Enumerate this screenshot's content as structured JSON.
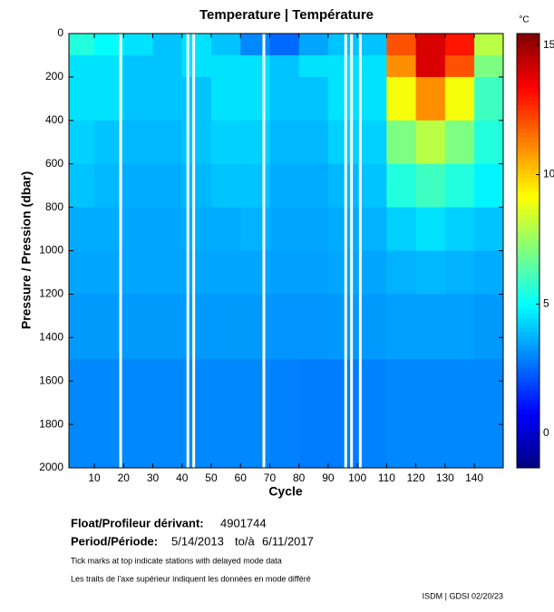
{
  "chart_data": {
    "type": "heatmap",
    "title": "Temperature | Température",
    "x_label": "Cycle",
    "y_label": "Pressure / Pression (dbar)",
    "xlim": [
      1.3,
      149.9
    ],
    "ylim": [
      2000,
      0
    ],
    "xticks": [
      10,
      20,
      30,
      40,
      50,
      60,
      70,
      80,
      90,
      100,
      110,
      120,
      130,
      140
    ],
    "yticks": [
      0,
      200,
      400,
      600,
      800,
      1000,
      1200,
      1400,
      1600,
      1800,
      2000
    ],
    "x_edges": [
      0,
      10,
      20,
      30,
      40,
      50,
      60,
      70,
      80,
      90,
      100,
      110,
      120,
      130,
      140,
      150
    ],
    "y_edges": [
      0,
      100,
      200,
      400,
      600,
      800,
      1000,
      1200,
      1500,
      2000
    ],
    "values": [
      [
        5.5,
        5,
        4.5,
        4,
        4.5,
        4,
        3,
        2.5,
        3.5,
        4,
        4,
        12,
        14,
        13,
        8
      ],
      [
        4.5,
        4.5,
        4,
        4,
        4.5,
        4.5,
        4.5,
        4,
        4.5,
        4.5,
        4.5,
        11,
        14,
        12,
        7
      ],
      [
        4.5,
        4.5,
        4,
        4,
        4,
        4.5,
        4.5,
        4,
        4,
        4.5,
        4.5,
        9,
        11,
        9,
        6
      ],
      [
        4.2,
        4,
        3.8,
        3.8,
        4,
        4.2,
        4.2,
        3.8,
        3.8,
        4.2,
        4.2,
        7,
        8,
        7,
        5.5
      ],
      [
        4,
        3.8,
        3.6,
        3.6,
        3.8,
        4,
        4,
        3.6,
        3.6,
        3.8,
        4,
        5.5,
        6,
        5.5,
        4.8
      ],
      [
        3.6,
        3.6,
        3.5,
        3.5,
        3.6,
        3.6,
        3.7,
        3.5,
        3.5,
        3.6,
        3.7,
        4.2,
        4.5,
        4.2,
        4
      ],
      [
        3.5,
        3.5,
        3.5,
        3.5,
        3.5,
        3.5,
        3.5,
        3.4,
        3.4,
        3.5,
        3.5,
        3.7,
        3.8,
        3.7,
        3.6
      ],
      [
        3.3,
        3.3,
        3.3,
        3.3,
        3.3,
        3.3,
        3.3,
        3.2,
        3.2,
        3.3,
        3.3,
        3.4,
        3.4,
        3.4,
        3.3
      ],
      [
        3,
        3,
        3,
        3,
        3,
        3,
        3,
        2.9,
        2.8,
        2.8,
        2.9,
        3,
        3,
        3,
        3
      ]
    ],
    "gaps": [
      19,
      42,
      44,
      68,
      96,
      98,
      101
    ],
    "colormap": "jet",
    "color_label": "°C",
    "clim": [
      -1.33,
      15.45
    ],
    "cticks": [
      0,
      5,
      10,
      15
    ],
    "float_label": "Float/Profileur dérivant:",
    "float_id": "4901744",
    "period_label": "Period/Période:",
    "period_start": "5/14/2013",
    "period_to": "to/à",
    "period_end": "6/11/2017",
    "note_en": "Tick marks at top indicate stations with delayed mode data",
    "note_fr": "Les traits de l'axe supérieur indiquent les données en mode différé",
    "footer": "ISDM | GDSI 02/20/23"
  }
}
